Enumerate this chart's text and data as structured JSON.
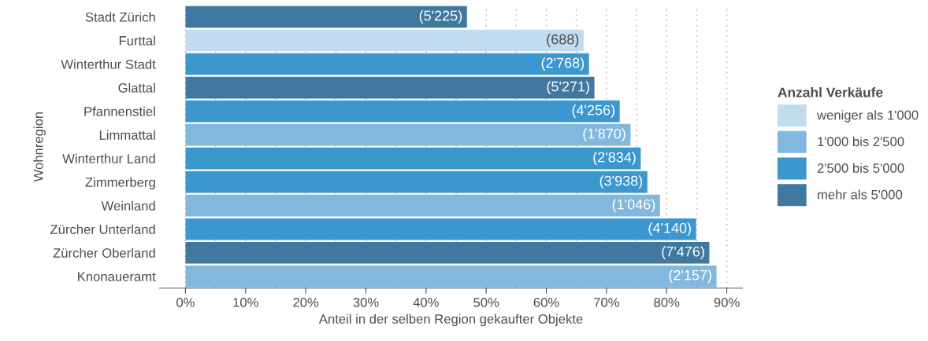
{
  "chart_data": {
    "type": "bar",
    "orientation": "horizontal",
    "categories": [
      "Stadt Zürich",
      "Furttal",
      "Winterthur Stadt",
      "Glattal",
      "Pfannenstiel",
      "Limmattal",
      "Winterthur Land",
      "Zimmerberg",
      "Weinland",
      "Zürcher Unterland",
      "Zürcher Oberland",
      "Knonaueramt"
    ],
    "series": [
      {
        "name": "weniger als 1'000",
        "color": "#c0dcee",
        "values": [
          null,
          66.2,
          null,
          null,
          null,
          null,
          null,
          null,
          null,
          null,
          null,
          null
        ]
      },
      {
        "name": "1'000 bis 2'500",
        "color": "#82b8de",
        "values": [
          null,
          null,
          null,
          null,
          null,
          74.0,
          null,
          null,
          78.9,
          null,
          null,
          88.3
        ]
      },
      {
        "name": "2'500 bis 5'000",
        "color": "#3d97cf",
        "values": [
          null,
          null,
          67.1,
          null,
          72.2,
          null,
          75.7,
          76.8,
          null,
          84.9,
          null,
          null
        ]
      },
      {
        "name": "mehr als 5'000",
        "color": "#41789f",
        "values": [
          46.8,
          null,
          null,
          68.0,
          null,
          null,
          null,
          null,
          null,
          null,
          87.1,
          null
        ]
      }
    ],
    "annotations": [
      {
        "text": "(5'225)",
        "x": 46.8,
        "y": "Stadt Zürich"
      },
      {
        "text": "(688)",
        "x": 66.2,
        "y": "Furttal"
      },
      {
        "text": "(2'768)",
        "x": 67.1,
        "y": "Winterthur Stadt"
      },
      {
        "text": "(5'271)",
        "x": 68.0,
        "y": "Glattal"
      },
      {
        "text": "(4'256)",
        "x": 72.2,
        "y": "Pfannenstiel"
      },
      {
        "text": "(1'870)",
        "x": 74.0,
        "y": "Limmattal"
      },
      {
        "text": "(2'834)",
        "x": 75.7,
        "y": "Winterthur Land"
      },
      {
        "text": "(3'938)",
        "x": 76.8,
        "y": "Zimmerberg"
      },
      {
        "text": "(1'046)",
        "x": 78.9,
        "y": "Weinland"
      },
      {
        "text": "(4'140)",
        "x": 84.9,
        "y": "Zürcher Unterland"
      },
      {
        "text": "(7'476)",
        "x": 87.1,
        "y": "Zürcher Oberland"
      },
      {
        "text": "(2'157)",
        "x": 88.3,
        "y": "Knonaueramt"
      }
    ],
    "xlim": [
      -4.3,
      92.6
    ],
    "xticks": [
      {
        "value": 0,
        "label": "0%"
      },
      {
        "value": 10,
        "label": "10%"
      },
      {
        "value": 20,
        "label": "20%"
      },
      {
        "value": 30,
        "label": "30%"
      },
      {
        "value": 40,
        "label": "40%"
      },
      {
        "value": 50,
        "label": "50%"
      },
      {
        "value": 60,
        "label": "60%"
      },
      {
        "value": 70,
        "label": "70%"
      },
      {
        "value": 80,
        "label": "80%"
      },
      {
        "value": 90,
        "label": "90%"
      }
    ],
    "xlabel": "Anteil in der selben Region gekaufter Objekte",
    "ylabel": "Wohnregion",
    "legend_title": "Anzahl Verkäufe",
    "legend": "right",
    "grid": "x"
  }
}
